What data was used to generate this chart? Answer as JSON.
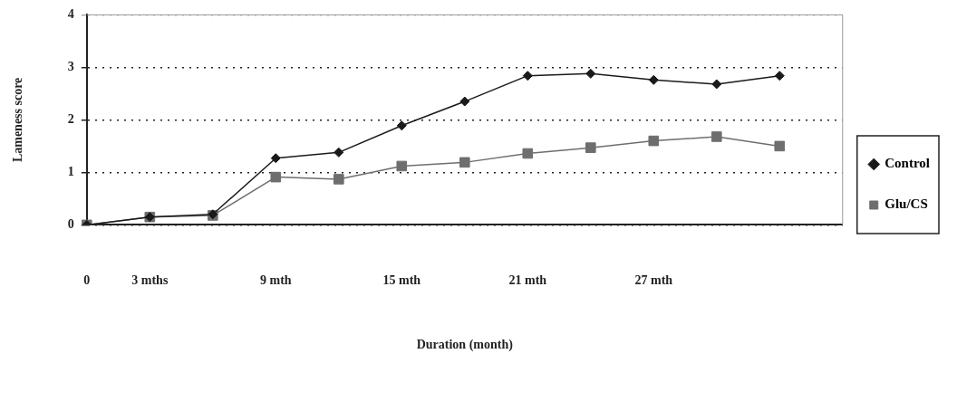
{
  "chart_data": {
    "type": "line",
    "xlabel": "Duration (month)",
    "ylabel": "Lameness score",
    "categories": [
      "0",
      "3 mths",
      null,
      "9 mth",
      null,
      "15 mth",
      null,
      "21 mth",
      null,
      "27 mth",
      null,
      null,
      null
    ],
    "series": [
      {
        "name": "Control",
        "color": "#1a1a1a",
        "marker": "diamond",
        "values": [
          0,
          0.15,
          0.2,
          1.27,
          1.38,
          1.89,
          2.35,
          2.84,
          2.88,
          2.76,
          2.68,
          2.84,
          null
        ]
      },
      {
        "name": "Glu/CS",
        "color": "#6e6e6e",
        "marker": "square",
        "values": [
          0,
          0.15,
          0.18,
          0.91,
          0.87,
          1.12,
          1.19,
          1.36,
          1.47,
          1.6,
          1.68,
          1.5,
          null
        ]
      }
    ],
    "ylim": [
      0,
      4
    ],
    "yticks": [
      0,
      1,
      2,
      3,
      4
    ],
    "grid": "y",
    "legend": "right",
    "line_style": "solid"
  }
}
